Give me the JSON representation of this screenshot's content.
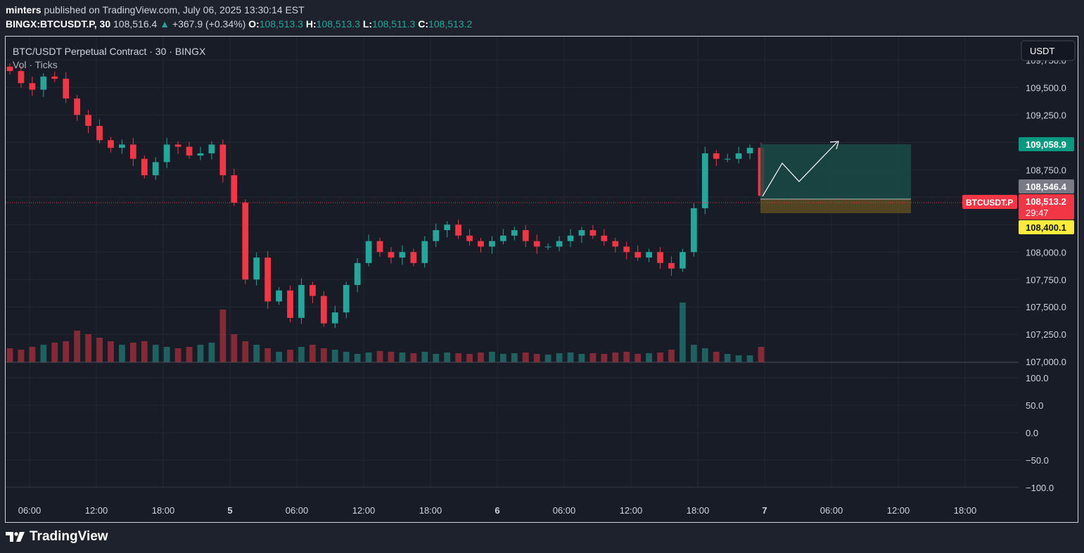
{
  "header": {
    "publisher": "minters",
    "published_text": "published on TradingView.com, July 06, 2025 13:30:14 EST",
    "symbol": "BINGX:BTCUSDT.P, 30",
    "last": "108,516.4",
    "change_arrow": "▲",
    "change": "+367.9 (+0.34%)",
    "o_label": "O:",
    "o_val": "108,513.3",
    "h_label": "H:",
    "h_val": "108,513.3",
    "l_label": "L:",
    "l_val": "108,511.3",
    "c_label": "C:",
    "c_val": "108,513.2"
  },
  "legend": {
    "title": "BTC/USDT Perpetual Contract · 30 · BINGX",
    "indicator": "Vol · Ticks"
  },
  "currency_button": "USDT",
  "price_labels": {
    "target": "109,058.9",
    "entry": "108,546.4",
    "last": "108,513.2",
    "countdown": "29:47",
    "stop": "108,400.1",
    "symbol_tag": "BTCUSDT.P"
  },
  "brand": "TradingView",
  "colors": {
    "up": "#26a69a",
    "down": "#f23645",
    "background": "#181c27",
    "target_zone": "#1e4a47",
    "stop_zone": "#5a4a2a",
    "stop_label": "#ffeb3b"
  },
  "chart_data": {
    "type": "candlestick",
    "title": "BTC/USDT Perpetual Contract · 30 · BINGX",
    "interval": "30",
    "ylim": [
      106950,
      109900
    ],
    "y_ticks": [
      107000,
      107250,
      107500,
      107750,
      108000,
      108250,
      108500,
      108750,
      109000,
      109250,
      109500,
      109750
    ],
    "y_tick_labels": [
      "107,000.0",
      "107,250.0",
      "107,500.0",
      "107,750.0",
      "108,000.0",
      "108,250.0",
      "108,500.0",
      "108,750.0",
      "109,000.0",
      "109,250.0",
      "109,500.0",
      "109,750.0"
    ],
    "x_ticks": [
      "06:00",
      "12:00",
      "18:00",
      "5",
      "06:00",
      "12:00",
      "18:00",
      "6",
      "06:00",
      "12:00",
      "18:00",
      "7",
      "06:00",
      "12:00",
      "18:00"
    ],
    "candles_approx_close": [
      109650,
      109540,
      109480,
      109600,
      109580,
      109400,
      109250,
      109150,
      109020,
      108950,
      108980,
      108850,
      108700,
      108820,
      108980,
      108960,
      108880,
      108900,
      108980,
      108700,
      108450,
      107750,
      107950,
      107550,
      107650,
      107400,
      107700,
      107600,
      107350,
      107450,
      107700,
      107900,
      108100,
      108000,
      107950,
      108000,
      107900,
      108100,
      108200,
      108250,
      108150,
      108100,
      108050,
      108100,
      108150,
      108200,
      108100,
      108050,
      108050,
      108100,
      108150,
      108200,
      108150,
      108100,
      108050,
      108000,
      107950,
      108000,
      107900,
      107850,
      108000,
      108400,
      108900,
      108850,
      108850,
      108900,
      108950,
      108513
    ],
    "volume_approx": [
      20,
      18,
      22,
      25,
      28,
      30,
      45,
      40,
      35,
      30,
      25,
      28,
      30,
      25,
      22,
      20,
      22,
      25,
      28,
      75,
      40,
      30,
      25,
      20,
      15,
      18,
      22,
      25,
      20,
      18,
      15,
      12,
      14,
      16,
      15,
      14,
      13,
      15,
      12,
      14,
      13,
      12,
      14,
      15,
      12,
      13,
      14,
      12,
      11,
      13,
      14,
      12,
      13,
      12,
      14,
      15,
      12,
      13,
      14,
      18,
      85,
      25,
      20,
      15,
      12,
      10,
      10,
      22
    ],
    "osc_ticks": [
      "100.0",
      "50.0",
      "0.0",
      "−50.0",
      "−100.0"
    ],
    "position": {
      "type": "long",
      "entry": 108546.4,
      "target": 109058.9,
      "stop": 108400.1
    }
  }
}
